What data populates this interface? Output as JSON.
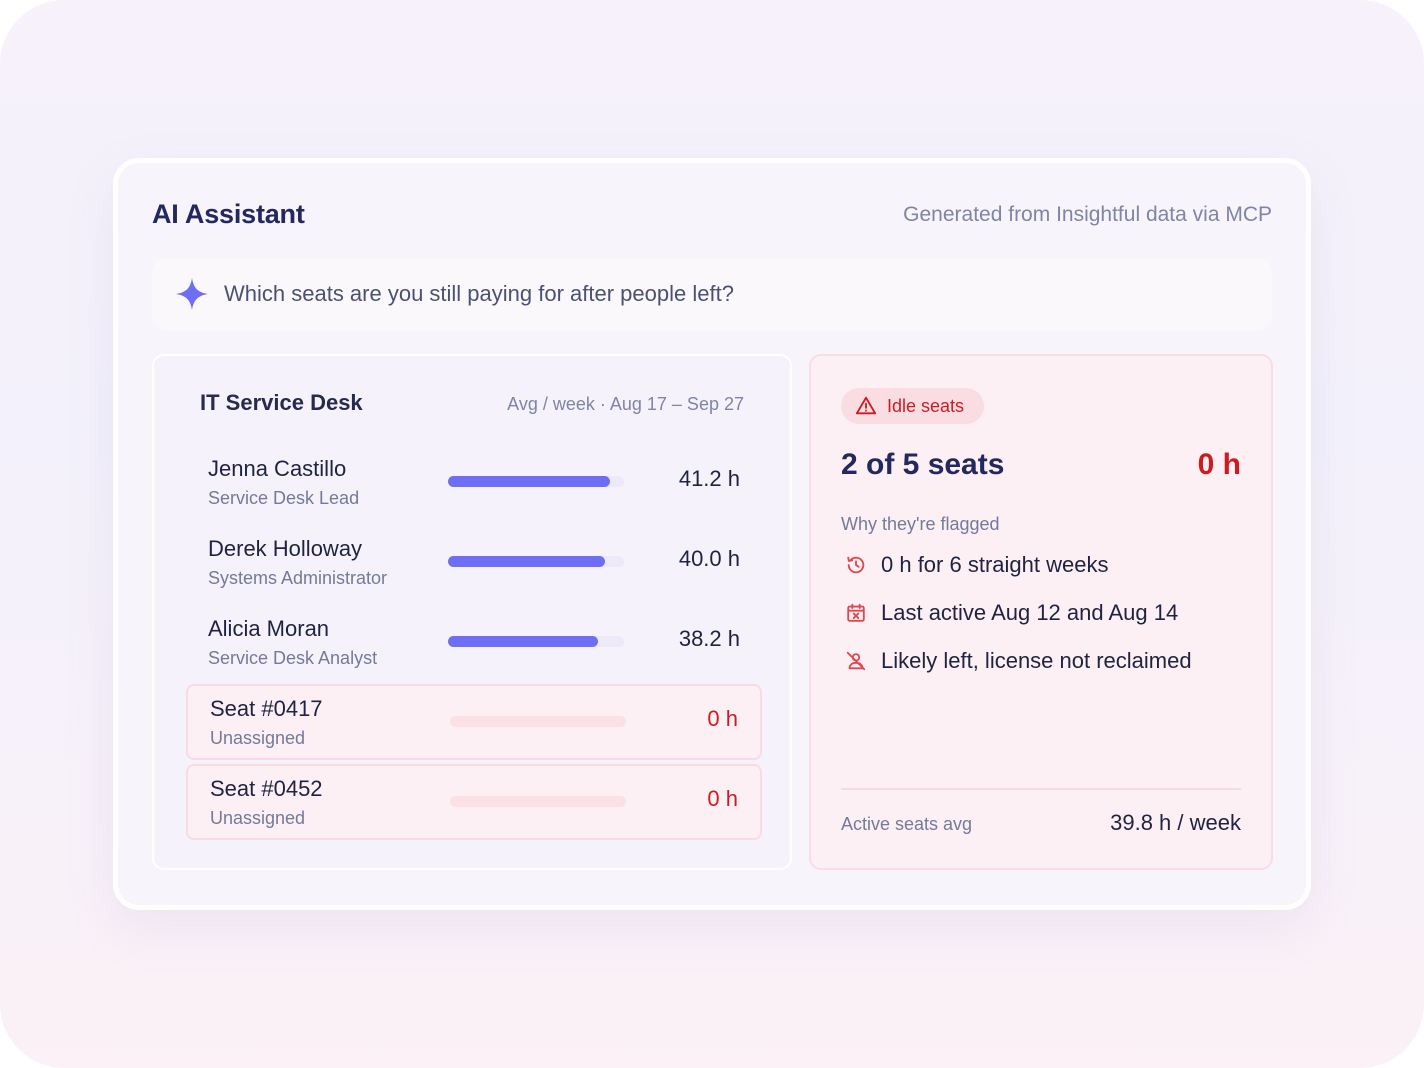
{
  "header": {
    "title": "AI Assistant",
    "source": "Generated from Insightful data via MCP"
  },
  "query": {
    "icon": "sparkle-icon",
    "text": "Which seats are you still paying for after people left?"
  },
  "team": {
    "name": "IT Service Desk",
    "period": "Avg / week · Aug 17 – Sep 27",
    "rows": [
      {
        "name": "Jenna Castillo",
        "role": "Service Desk Lead",
        "hours": "41.2 h",
        "fill": 0.92,
        "idle": false
      },
      {
        "name": "Derek Holloway",
        "role": "Systems Administrator",
        "hours": "40.0 h",
        "fill": 0.89,
        "idle": false
      },
      {
        "name": "Alicia Moran",
        "role": "Service Desk Analyst",
        "hours": "38.2 h",
        "fill": 0.85,
        "idle": false
      },
      {
        "name": "Seat #0417",
        "role": "Unassigned",
        "hours": "0 h",
        "fill": 0,
        "idle": true
      },
      {
        "name": "Seat #0452",
        "role": "Unassigned",
        "hours": "0 h",
        "fill": 0,
        "idle": true
      }
    ]
  },
  "idle": {
    "badge": "Idle seats",
    "badge_icon": "warning-triangle-icon",
    "count": "2 of 5 seats",
    "hours": "0 h",
    "flag_heading": "Why they're flagged",
    "reasons": [
      {
        "icon": "history-icon",
        "text": "0 h for 6 straight weeks"
      },
      {
        "icon": "calendar-x-icon",
        "text": "Last active Aug 12 and Aug 14"
      },
      {
        "icon": "user-off-icon",
        "text": "Likely left, license not reclaimed"
      }
    ],
    "footer": {
      "label": "Active seats avg",
      "value": "39.8 h / week"
    }
  },
  "colors": {
    "accent": "#6e6ef4",
    "danger": "#cc1c22",
    "title": "#23285e"
  }
}
